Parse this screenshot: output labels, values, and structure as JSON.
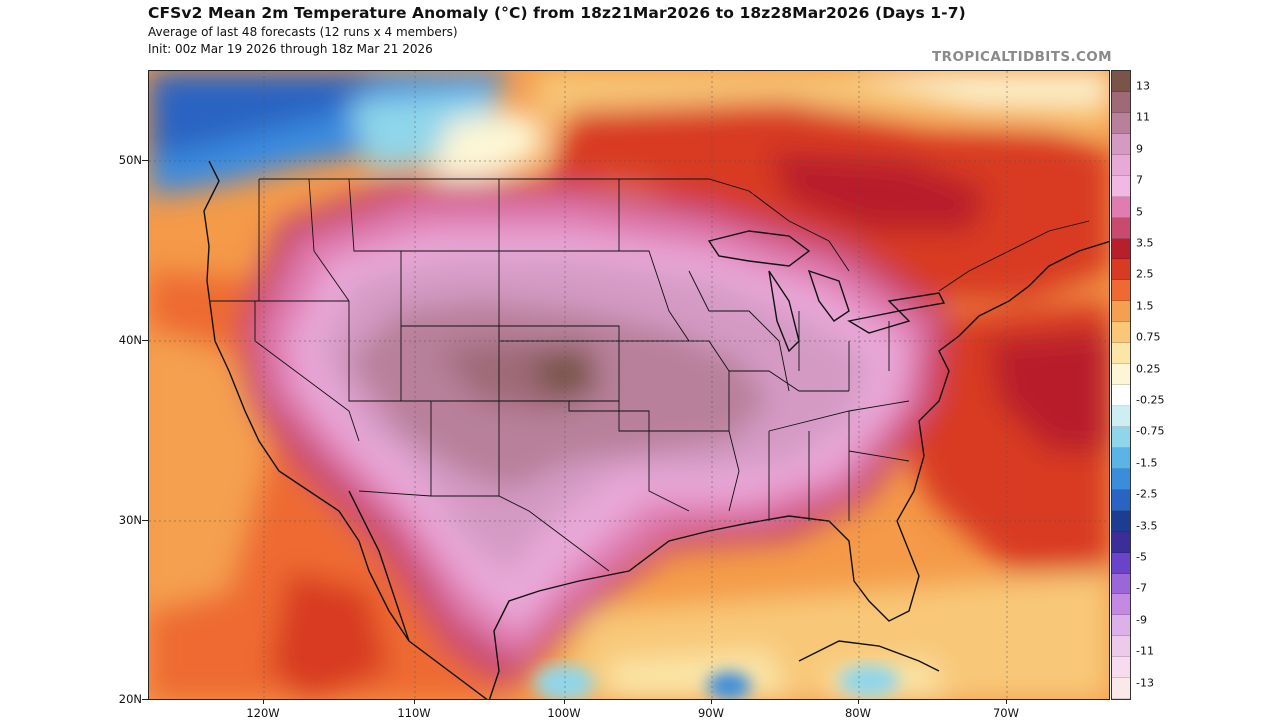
{
  "header": {
    "title": "CFSv2 Mean 2m Temperature Anomaly (°C) from 18z21Mar2026 to 18z28Mar2026 (Days 1-7)",
    "subtitle_1": "Average of last 48 forecasts (12 runs x 4 members)",
    "subtitle_2": "Init: 00z Mar 19 2026 through 18z Mar 21 2026",
    "credit": "TROPICALTIDBITS.COM"
  },
  "axes": {
    "latitudes": [
      {
        "label": "50N",
        "value": 50
      },
      {
        "label": "40N",
        "value": 40
      },
      {
        "label": "30N",
        "value": 30
      },
      {
        "label": "20N",
        "value": 20
      }
    ],
    "longitudes": [
      {
        "label": "120W",
        "value": -120
      },
      {
        "label": "110W",
        "value": -110
      },
      {
        "label": "100W",
        "value": -100
      },
      {
        "label": "90W",
        "value": -90
      },
      {
        "label": "80W",
        "value": -80
      },
      {
        "label": "70W",
        "value": -70
      }
    ],
    "lat_range": [
      20,
      55
    ],
    "lon_range": [
      -127,
      -65
    ]
  },
  "colorbar": {
    "labels": [
      "13",
      "11",
      "9",
      "7",
      "5",
      "3.5",
      "2.5",
      "1.5",
      "0.75",
      "0.25",
      "-0.25",
      "-0.75",
      "-1.5",
      "-2.5",
      "-3.5",
      "-5",
      "-7",
      "-9",
      "-11",
      "-13"
    ],
    "colors": [
      "#7a5448",
      "#9e6a78",
      "#b8809a",
      "#d49ac4",
      "#e8a8d8",
      "#f0b8e2",
      "#e07cb0",
      "#c84a6e",
      "#b81f2a",
      "#d83a22",
      "#ee6a32",
      "#f4a050",
      "#f8c878",
      "#fbe6a8",
      "#fdf6d6",
      "#ffffff",
      "#cdeef2",
      "#8fd6ea",
      "#5ab4e8",
      "#3a8cdc",
      "#2a64c2",
      "#1e3c92",
      "#3c2e98",
      "#6a44c8",
      "#9a66d8",
      "#c48ae2",
      "#dcb0e8",
      "#eccaec",
      "#f6dcee",
      "#fbe8e8"
    ]
  }
}
